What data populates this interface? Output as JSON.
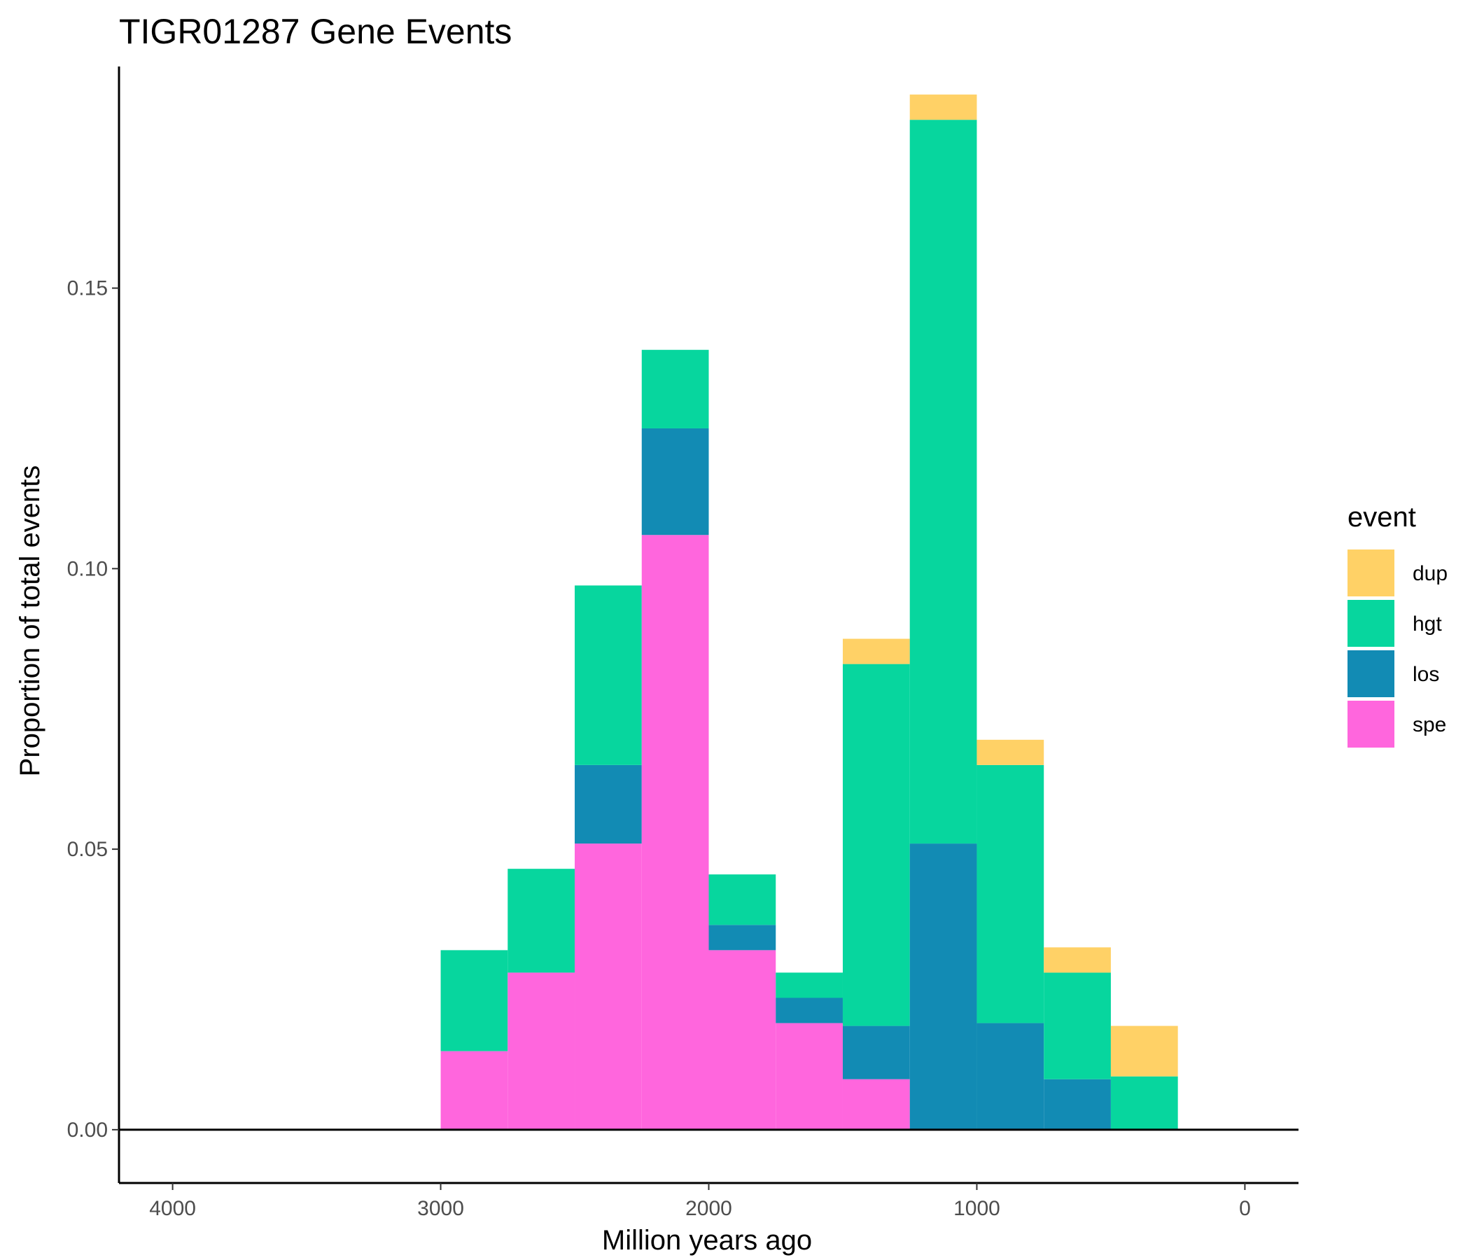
{
  "chart_data": {
    "type": "bar",
    "stacked": true,
    "title": "TIGR01287 Gene Events",
    "xlabel": "Million years ago",
    "ylabel": "Proportion of total events",
    "x_reversed": true,
    "xlim": [
      4200,
      -200
    ],
    "ylim": [
      -0.0095,
      0.1895
    ],
    "x_ticks": [
      4000,
      3000,
      2000,
      1000,
      0
    ],
    "x_tick_labels": [
      "4000",
      "3000",
      "2000",
      "1000",
      "0"
    ],
    "y_ticks": [
      0,
      0.05,
      0.1,
      0.15
    ],
    "y_tick_labels": [
      "0.00",
      "0.05",
      "0.10",
      "0.15"
    ],
    "hline_y": 0,
    "bin_width": 250,
    "bin_centers": [
      2875,
      2625,
      2375,
      2125,
      1875,
      1625,
      1375,
      1125,
      875,
      625,
      375
    ],
    "series": [
      {
        "name": "spe",
        "color": "#FF66DD",
        "values": [
          0.014,
          0.028,
          0.051,
          0.106,
          0.032,
          0.019,
          0.009,
          0,
          0,
          0,
          0
        ]
      },
      {
        "name": "los",
        "color": "#128BB4",
        "values": [
          0,
          0,
          0.014,
          0.019,
          0.0045,
          0.0045,
          0.0095,
          0.051,
          0.019,
          0.009,
          0
        ]
      },
      {
        "name": "hgt",
        "color": "#07D69E",
        "values": [
          0.018,
          0.0185,
          0.032,
          0.014,
          0.009,
          0.0045,
          0.0645,
          0.129,
          0.046,
          0.019,
          0.0095
        ]
      },
      {
        "name": "dup",
        "color": "#FFD166",
        "values": [
          0,
          0,
          0,
          0,
          0,
          0,
          0.0045,
          0.0045,
          0.0045,
          0.0045,
          0.009
        ]
      }
    ],
    "legend": {
      "title": "event",
      "placement": "right",
      "entries": [
        {
          "name": "dup",
          "color": "#FFD166"
        },
        {
          "name": "hgt",
          "color": "#07D69E"
        },
        {
          "name": "los",
          "color": "#128BB4"
        },
        {
          "name": "spe",
          "color": "#FF66DD"
        }
      ]
    },
    "grid": false
  }
}
